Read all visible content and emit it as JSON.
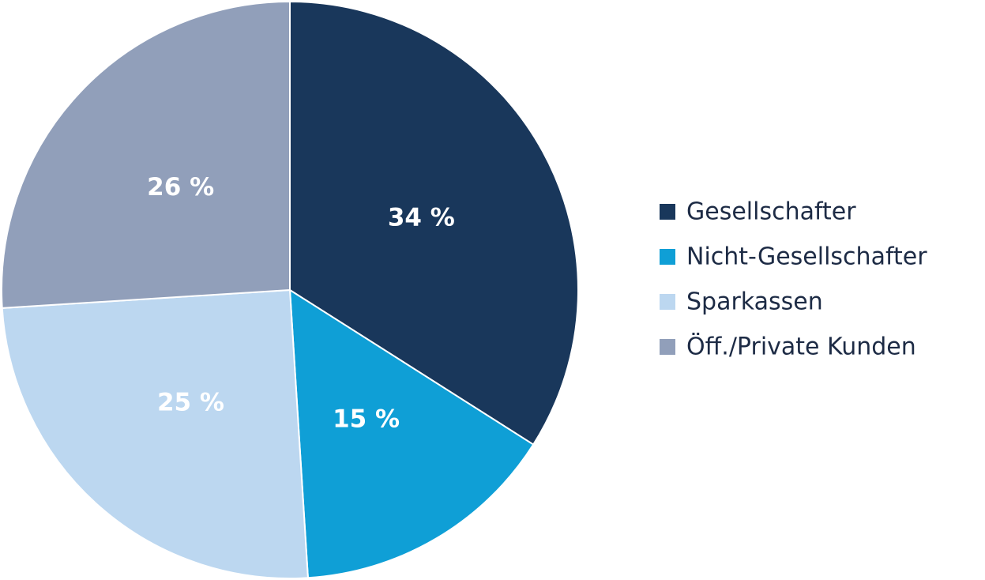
{
  "chart_data": {
    "type": "pie",
    "title": "",
    "legend_position": "right",
    "slices": [
      {
        "name": "Gesellschafter",
        "value": 34,
        "label": "34 %",
        "color": "#19375b"
      },
      {
        "name": "Nicht-Gesellschafter",
        "value": 15,
        "label": "15 %",
        "color": "#0f9fd6"
      },
      {
        "name": "Sparkassen",
        "value": 25,
        "label": "25 %",
        "color": "#bcd7f0"
      },
      {
        "name": "Öff./Private Kunden",
        "value": 26,
        "label": "26 %",
        "color": "#919fba"
      }
    ]
  }
}
